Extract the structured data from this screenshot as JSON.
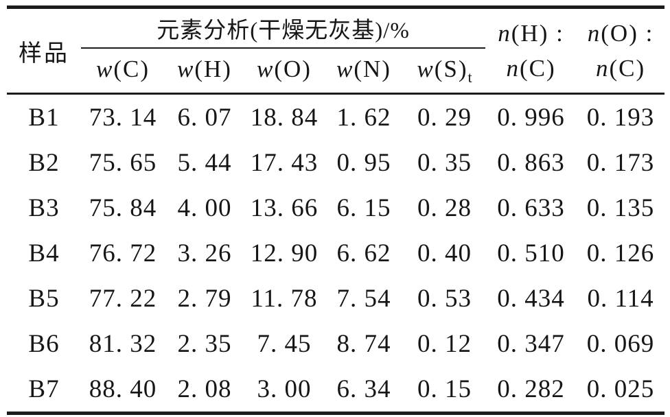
{
  "table": {
    "sample_header": "样品",
    "group_header": "元素分析(干燥无灰基)/%",
    "sub_headers": [
      {
        "var": "w",
        "args": "(C)",
        "sub": ""
      },
      {
        "var": "w",
        "args": "(H)",
        "sub": ""
      },
      {
        "var": "w",
        "args": "(O)",
        "sub": ""
      },
      {
        "var": "w",
        "args": "(N)",
        "sub": ""
      },
      {
        "var": "w",
        "args": "(S)",
        "sub": "t"
      }
    ],
    "ratio_headers": [
      {
        "top_var": "n",
        "top_args": "(H) :",
        "bottom_var": "n",
        "bottom_args": "(C)"
      },
      {
        "top_var": "n",
        "top_args": "(O) :",
        "bottom_var": "n",
        "bottom_args": "(C)"
      }
    ],
    "rows": [
      {
        "sample": "B1",
        "values": [
          "73.14",
          "6.07",
          "18.84",
          "1.62",
          "0.29",
          "0.996",
          "0.193"
        ]
      },
      {
        "sample": "B2",
        "values": [
          "75.65",
          "5.44",
          "17.43",
          "0.95",
          "0.35",
          "0.863",
          "0.173"
        ]
      },
      {
        "sample": "B3",
        "values": [
          "75.84",
          "4.00",
          "13.66",
          "6.15",
          "0.28",
          "0.633",
          "0.135"
        ]
      },
      {
        "sample": "B4",
        "values": [
          "76.72",
          "3.26",
          "12.90",
          "6.62",
          "0.40",
          "0.510",
          "0.126"
        ]
      },
      {
        "sample": "B5",
        "values": [
          "77.22",
          "2.79",
          "11.78",
          "7.54",
          "0.53",
          "0.434",
          "0.114"
        ]
      },
      {
        "sample": "B6",
        "values": [
          "81.32",
          "2.35",
          "7.45",
          "8.74",
          "0.12",
          "0.347",
          "0.069"
        ]
      },
      {
        "sample": "B7",
        "values": [
          "88.40",
          "2.08",
          "3.00",
          "6.34",
          "0.15",
          "0.282",
          "0.025"
        ]
      }
    ]
  },
  "colors": {
    "text": "#161616",
    "rule": "#1b1b1b",
    "background": "#ffffff"
  },
  "chart_data": {
    "type": "table",
    "title": "元素分析(干燥无灰基)/%",
    "columns": [
      "样品",
      "w(C)",
      "w(H)",
      "w(O)",
      "w(N)",
      "w(S)t",
      "n(H):n(C)",
      "n(O):n(C)"
    ],
    "rows": [
      [
        "B1",
        73.14,
        6.07,
        18.84,
        1.62,
        0.29,
        0.996,
        0.193
      ],
      [
        "B2",
        75.65,
        5.44,
        17.43,
        0.95,
        0.35,
        0.863,
        0.173
      ],
      [
        "B3",
        75.84,
        4.0,
        13.66,
        6.15,
        0.28,
        0.633,
        0.135
      ],
      [
        "B4",
        76.72,
        3.26,
        12.9,
        6.62,
        0.4,
        0.51,
        0.126
      ],
      [
        "B5",
        77.22,
        2.79,
        11.78,
        7.54,
        0.53,
        0.434,
        0.114
      ],
      [
        "B6",
        81.32,
        2.35,
        7.45,
        8.74,
        0.12,
        0.347,
        0.069
      ],
      [
        "B7",
        88.4,
        2.08,
        3.0,
        6.34,
        0.15,
        0.282,
        0.025
      ]
    ]
  }
}
